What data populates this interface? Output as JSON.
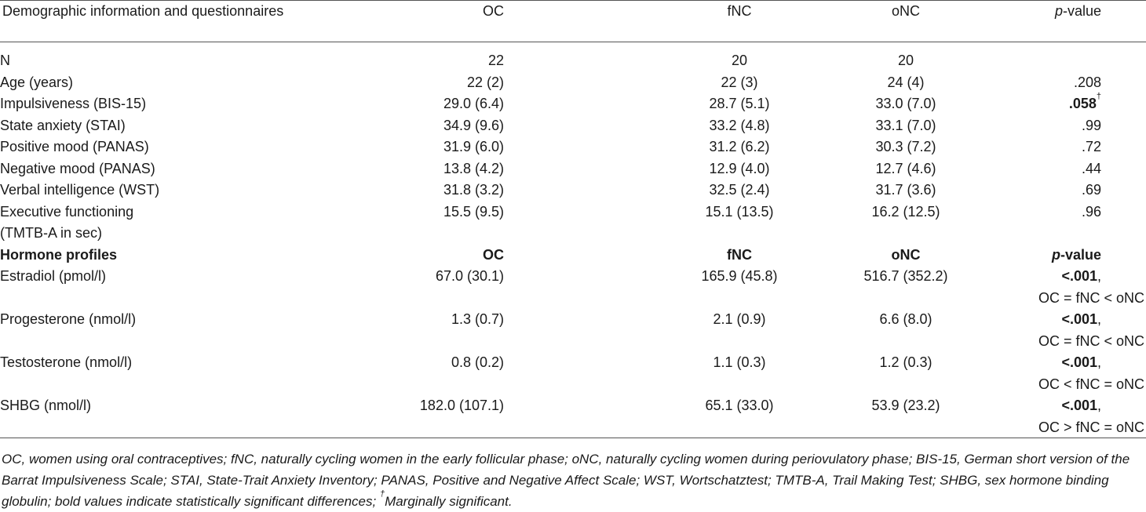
{
  "header": {
    "col0": "Demographic information and questionnaires",
    "col1": "OC",
    "col2": "fNC",
    "col3": "oNC",
    "col4_italic": "p",
    "col4_rest": "-value"
  },
  "rows": [
    {
      "label": "N",
      "oc": "22",
      "fnc": "20",
      "onc": "20",
      "p": ""
    },
    {
      "label": "Age (years)",
      "oc": "22 (2)",
      "fnc": "22 (3)",
      "onc": "24 (4)",
      "p": ".208"
    },
    {
      "label": "Impulsiveness (BIS-15)",
      "oc": "29.0 (6.4)",
      "fnc": "28.7 (5.1)",
      "onc": "33.0 (7.0)",
      "p": ".058",
      "p_sup": "†"
    },
    {
      "label": "State anxiety (STAI)",
      "oc": "34.9 (9.6)",
      "fnc": "33.2 (4.8)",
      "onc": "33.1 (7.0)",
      "p": ".99"
    },
    {
      "label": "Positive mood (PANAS)",
      "oc": "31.9 (6.0)",
      "fnc": "31.2 (6.2)",
      "onc": "30.3 (7.2)",
      "p": ".72"
    },
    {
      "label": "Negative mood (PANAS)",
      "oc": "13.8 (4.2)",
      "fnc": "12.9 (4.0)",
      "onc": "12.7 (4.6)",
      "p": ".44"
    },
    {
      "label": "Verbal intelligence (WST)",
      "oc": "31.8 (3.2)",
      "fnc": "32.5 (2.4)",
      "onc": "31.7 (3.6)",
      "p": ".69"
    },
    {
      "label": "Executive functioning",
      "label2": "(TMTB-A in sec)",
      "oc": "15.5 (9.5)",
      "fnc": "15.1 (13.5)",
      "onc": "16.2 (12.5)",
      "p": ".96"
    }
  ],
  "section2": {
    "col0": "Hormone profiles",
    "col1": "OC",
    "col2": "fNC",
    "col3": "oNC",
    "col4_italic": "p",
    "col4_rest": "-value"
  },
  "hormones": [
    {
      "label": "Estradiol (pmol/l)",
      "oc": "67.0 (30.1)",
      "fnc": "165.9 (45.8)",
      "onc": "516.7 (352.2)",
      "p": "<.001",
      "p_comma": ",",
      "p_line2": "OC = fNC < oNC"
    },
    {
      "label": "Progesterone (nmol/l)",
      "oc": "1.3 (0.7)",
      "fnc": "2.1 (0.9)",
      "onc": "6.6 (8.0)",
      "p": "<.001",
      "p_comma": ",",
      "p_line2": "OC = fNC < oNC"
    },
    {
      "label": "Testosterone (nmol/l)",
      "oc": "0.8 (0.2)",
      "fnc": "1.1 (0.3)",
      "onc": "1.2 (0.3)",
      "p": "<.001",
      "p_comma": ",",
      "p_line2": "OC < fNC = oNC"
    },
    {
      "label": "SHBG (nmol/l)",
      "oc": "182.0 (107.1)",
      "fnc": "65.1 (33.0)",
      "onc": "53.9 (23.2)",
      "p": "<.001",
      "p_comma": ",",
      "p_line2": "OC > fNC = oNC"
    }
  ],
  "footnote": {
    "text": "OC, women using oral contraceptives; fNC, naturally cycling women in the early follicular phase; oNC, naturally cycling women during periovulatory phase; BIS-15, German short version of the Barrat Impulsiveness Scale; STAI, State-Trait Anxiety Inventory; PANAS, Positive and Negative Affect Scale; WST, Wortschatztest; TMTB-A, Trail Making Test; SHBG, sex hormone binding globulin; bold values indicate statistically significant differences; ",
    "dagger": "†",
    "tail": "Marginally significant."
  }
}
